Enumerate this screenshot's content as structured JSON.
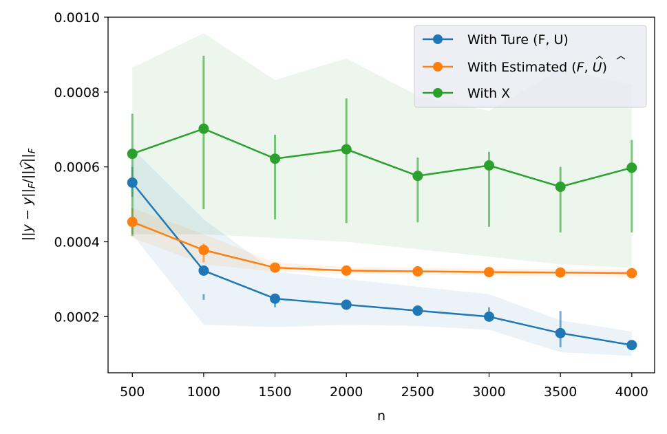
{
  "chart_data": {
    "type": "line",
    "title": "",
    "xlabel": "n",
    "ylabel": "||y − ŷ||_F / ||y||_F",
    "ylabel_parts": {
      "a": "||",
      "b": "y",
      "c": " − ",
      "d": "y",
      "e": "||",
      "f": "F",
      "g": "/||",
      "h": "y",
      "i": "||",
      "j": "F"
    },
    "x": [
      500,
      1000,
      1500,
      2000,
      2500,
      3000,
      3500,
      4000
    ],
    "xticks": [
      "500",
      "1000",
      "1500",
      "2000",
      "2500",
      "3000",
      "3500",
      "4000"
    ],
    "yticks": [
      "0.0002",
      "0.0004",
      "0.0006",
      "0.0008",
      "0.0010"
    ],
    "ytick_values": [
      0.0002,
      0.0004,
      0.0006,
      0.0008,
      0.001
    ],
    "xlim": [
      330,
      4160
    ],
    "ylim": [
      5e-05,
      0.001
    ],
    "legend_position": "top-right",
    "series": [
      {
        "name": "With Ture (F, U)",
        "label_parts": {
          "main": "With Ture (F, U)"
        },
        "color": "#1f77b4",
        "values": [
          0.000558,
          0.000323,
          0.000248,
          0.000232,
          0.000216,
          0.0002,
          0.000156,
          0.000124
        ],
        "err_lo": [
          0.00052,
          0.000245,
          0.000225,
          0.00023,
          0.000215,
          0.00019,
          0.000118,
          0.00012
        ],
        "err_hi": [
          0.0006,
          0.00026,
          0.000245,
          0.000232,
          0.00022,
          0.000225,
          0.000215,
          0.000128
        ],
        "band_lo": [
          0.00042,
          0.000178,
          0.000172,
          0.000178,
          0.000175,
          0.000165,
          0.000105,
          9.5e-05
        ],
        "band_hi": [
          0.00065,
          0.00046,
          0.00032,
          0.0003,
          0.00028,
          0.00026,
          0.00019,
          0.00016
        ]
      },
      {
        "name": "With Estimated (F̂, Û)",
        "label_parts": {
          "prefix": "With Estimated (",
          "f": "F",
          "sep": ", ",
          "u": "U",
          "suffix": ")"
        },
        "color": "#ff7f0e",
        "values": [
          0.000453,
          0.000378,
          0.000331,
          0.000323,
          0.000321,
          0.000319,
          0.000318,
          0.000316
        ],
        "err_lo": [
          0.00042,
          0.000345,
          0.000328,
          0.000321,
          0.000319,
          0.000317,
          0.000316,
          0.000314
        ],
        "err_hi": [
          0.00049,
          0.000395,
          0.000335,
          0.000325,
          0.000323,
          0.000321,
          0.00032,
          0.000318
        ],
        "band_lo": [
          0.00041,
          0.00034,
          0.00032,
          0.000315,
          0.000312,
          0.00031,
          0.000308,
          0.000305
        ],
        "band_hi": [
          0.00049,
          0.00042,
          0.000345,
          0.000332,
          0.00033,
          0.000328,
          0.000327,
          0.000325
        ]
      },
      {
        "name": "With X",
        "label_parts": {
          "main": "With X"
        },
        "color": "#2ca02c",
        "values": [
          0.000635,
          0.000702,
          0.000622,
          0.000647,
          0.000576,
          0.000604,
          0.000547,
          0.000598
        ],
        "err_lo": [
          0.000415,
          0.000487,
          0.00046,
          0.00045,
          0.000452,
          0.00044,
          0.000425,
          0.000425
        ],
        "err_hi": [
          0.000742,
          0.000897,
          0.000686,
          0.000783,
          0.000625,
          0.00064,
          0.0006,
          0.000672
        ],
        "band_lo": [
          0.00042,
          0.00042,
          0.00041,
          0.0004,
          0.00038,
          0.00036,
          0.00034,
          0.00033
        ],
        "band_hi": [
          0.000865,
          0.000957,
          0.000832,
          0.00089,
          0.00079,
          0.00075,
          0.00086,
          0.00082
        ]
      }
    ]
  }
}
